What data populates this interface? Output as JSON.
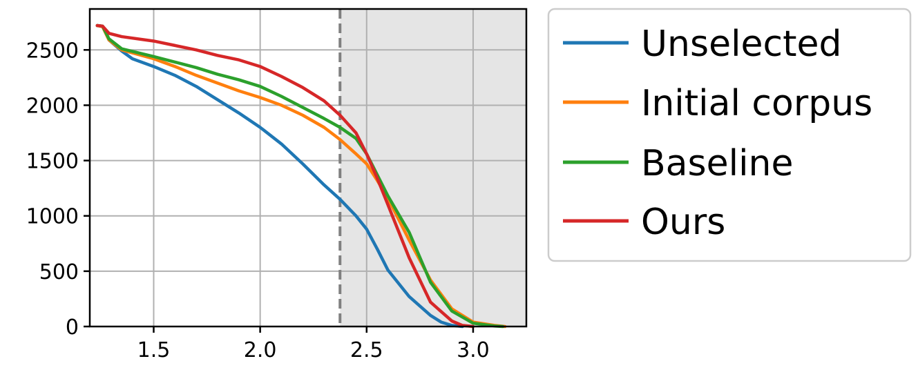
{
  "chart_data": {
    "type": "line",
    "title": "",
    "xlabel": "",
    "ylabel": "",
    "xlim": [
      1.2,
      3.25
    ],
    "ylim": [
      0,
      2870
    ],
    "xticks": [
      1.5,
      2.0,
      2.5,
      3.0
    ],
    "xtick_labels": [
      "1.5",
      "2.0",
      "2.5",
      "3.0"
    ],
    "yticks": [
      0,
      500,
      1000,
      1500,
      2000,
      2500
    ],
    "ytick_labels": [
      "0",
      "500",
      "1000",
      "1500",
      "2000",
      "2500"
    ],
    "grid": true,
    "legend_position": "outside-right",
    "threshold": {
      "x": 2.375,
      "style": "dashed",
      "color": "#808080",
      "shaded_region": [
        2.375,
        3.25
      ],
      "shade_color": "#e5e5e5"
    },
    "series": [
      {
        "name": "Unselected",
        "color": "#1f77b4",
        "points": [
          [
            1.235,
            2720
          ],
          [
            1.26,
            2715
          ],
          [
            1.29,
            2590
          ],
          [
            1.35,
            2490
          ],
          [
            1.4,
            2420
          ],
          [
            1.5,
            2350
          ],
          [
            1.6,
            2270
          ],
          [
            1.7,
            2170
          ],
          [
            1.8,
            2050
          ],
          [
            1.9,
            1930
          ],
          [
            2.0,
            1800
          ],
          [
            2.1,
            1650
          ],
          [
            2.2,
            1470
          ],
          [
            2.3,
            1280
          ],
          [
            2.375,
            1150
          ],
          [
            2.45,
            1000
          ],
          [
            2.5,
            880
          ],
          [
            2.55,
            700
          ],
          [
            2.6,
            510
          ],
          [
            2.7,
            270
          ],
          [
            2.8,
            100
          ],
          [
            2.85,
            40
          ],
          [
            2.9,
            10
          ],
          [
            2.95,
            0
          ]
        ]
      },
      {
        "name": "Initial corpus",
        "color": "#ff7f0e",
        "points": [
          [
            1.235,
            2720
          ],
          [
            1.26,
            2710
          ],
          [
            1.29,
            2590
          ],
          [
            1.35,
            2500
          ],
          [
            1.5,
            2420
          ],
          [
            1.6,
            2350
          ],
          [
            1.7,
            2270
          ],
          [
            1.8,
            2200
          ],
          [
            1.9,
            2130
          ],
          [
            2.0,
            2070
          ],
          [
            2.1,
            2000
          ],
          [
            2.2,
            1910
          ],
          [
            2.3,
            1800
          ],
          [
            2.375,
            1690
          ],
          [
            2.45,
            1560
          ],
          [
            2.5,
            1470
          ],
          [
            2.55,
            1320
          ],
          [
            2.6,
            1160
          ],
          [
            2.7,
            780
          ],
          [
            2.8,
            420
          ],
          [
            2.9,
            160
          ],
          [
            3.0,
            40
          ],
          [
            3.1,
            10
          ],
          [
            3.15,
            0
          ]
        ]
      },
      {
        "name": "Baseline",
        "color": "#2ca02c",
        "points": [
          [
            1.235,
            2720
          ],
          [
            1.26,
            2715
          ],
          [
            1.29,
            2600
          ],
          [
            1.35,
            2510
          ],
          [
            1.5,
            2440
          ],
          [
            1.6,
            2390
          ],
          [
            1.7,
            2340
          ],
          [
            1.8,
            2280
          ],
          [
            1.9,
            2230
          ],
          [
            2.0,
            2170
          ],
          [
            2.1,
            2080
          ],
          [
            2.2,
            1980
          ],
          [
            2.3,
            1880
          ],
          [
            2.375,
            1800
          ],
          [
            2.45,
            1700
          ],
          [
            2.5,
            1560
          ],
          [
            2.55,
            1370
          ],
          [
            2.6,
            1180
          ],
          [
            2.7,
            850
          ],
          [
            2.8,
            400
          ],
          [
            2.9,
            140
          ],
          [
            3.0,
            30
          ],
          [
            3.1,
            5
          ],
          [
            3.14,
            0
          ]
        ]
      },
      {
        "name": "Ours",
        "color": "#d62728",
        "points": [
          [
            1.235,
            2720
          ],
          [
            1.26,
            2715
          ],
          [
            1.29,
            2650
          ],
          [
            1.35,
            2620
          ],
          [
            1.5,
            2580
          ],
          [
            1.6,
            2540
          ],
          [
            1.7,
            2500
          ],
          [
            1.8,
            2450
          ],
          [
            1.9,
            2410
          ],
          [
            2.0,
            2350
          ],
          [
            2.1,
            2260
          ],
          [
            2.2,
            2160
          ],
          [
            2.3,
            2040
          ],
          [
            2.375,
            1910
          ],
          [
            2.45,
            1750
          ],
          [
            2.5,
            1560
          ],
          [
            2.55,
            1340
          ],
          [
            2.6,
            1100
          ],
          [
            2.7,
            620
          ],
          [
            2.8,
            220
          ],
          [
            2.9,
            50
          ],
          [
            2.95,
            10
          ],
          [
            3.0,
            0
          ]
        ]
      }
    ]
  }
}
